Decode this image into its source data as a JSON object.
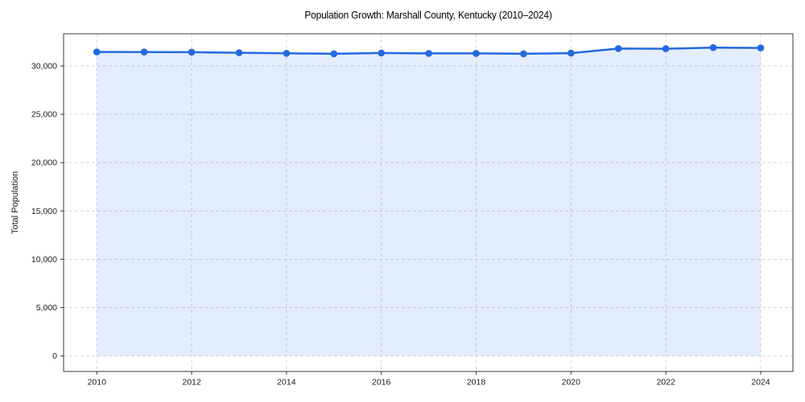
{
  "chart_data": {
    "type": "area",
    "title": "Population Growth: Marshall County, Kentucky (2010–2024)",
    "xlabel": "",
    "ylabel": "Total Population",
    "x": [
      2010,
      2011,
      2012,
      2013,
      2014,
      2015,
      2016,
      2017,
      2018,
      2019,
      2020,
      2021,
      2022,
      2023,
      2024
    ],
    "series": [
      {
        "name": "Total Population",
        "values": [
          31450,
          31440,
          31420,
          31360,
          31310,
          31260,
          31340,
          31300,
          31300,
          31260,
          31320,
          31800,
          31780,
          31900,
          31860
        ]
      }
    ],
    "xticks": [
      2010,
      2012,
      2014,
      2016,
      2018,
      2020,
      2022,
      2024
    ],
    "yticks": [
      0,
      5000,
      10000,
      15000,
      20000,
      25000,
      30000
    ],
    "xlim": [
      2009.3,
      2024.68
    ],
    "ylim": [
      -1605,
      33327
    ],
    "grid": true,
    "grid_style": "dashed",
    "legend": false,
    "marker": "circle",
    "colors": {
      "line": "#2369e0",
      "marker": "#2369e0",
      "fill": "rgba(35, 105, 224, 0.12)",
      "grid": "#d8d8d8",
      "axis_border": "#3b3b3b",
      "tick": "#333333",
      "text": "#1a1a1a",
      "background": "#ffffff"
    }
  }
}
